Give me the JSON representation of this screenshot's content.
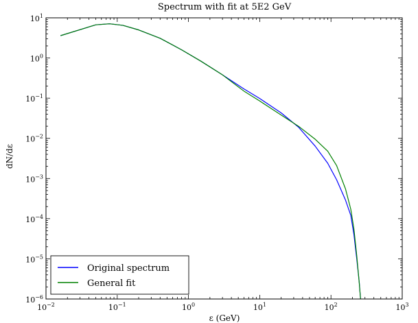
{
  "chart_data": {
    "type": "line",
    "title": "Spectrum with fit at 5E2 GeV",
    "xlabel": "ε (GeV)",
    "ylabel": "dN/dε",
    "xscale": "log",
    "yscale": "log",
    "xlim": [
      0.01,
      1000
    ],
    "ylim": [
      1e-06,
      10
    ],
    "x_ticks": [
      {
        "value": 0.01,
        "base": "10",
        "exp": "−2"
      },
      {
        "value": 0.1,
        "base": "10",
        "exp": "−1"
      },
      {
        "value": 1,
        "base": "10",
        "exp": "0"
      },
      {
        "value": 10,
        "base": "10",
        "exp": "1"
      },
      {
        "value": 100,
        "base": "10",
        "exp": "2"
      },
      {
        "value": 1000,
        "base": "10",
        "exp": "3"
      }
    ],
    "y_ticks": [
      {
        "value": 1e-06,
        "base": "10",
        "exp": "−6"
      },
      {
        "value": 1e-05,
        "base": "10",
        "exp": "−5"
      },
      {
        "value": 0.0001,
        "base": "10",
        "exp": "−4"
      },
      {
        "value": 0.001,
        "base": "10",
        "exp": "−3"
      },
      {
        "value": 0.01,
        "base": "10",
        "exp": "−2"
      },
      {
        "value": 0.1,
        "base": "10",
        "exp": "−1"
      },
      {
        "value": 1,
        "base": "10",
        "exp": "0"
      },
      {
        "value": 10,
        "base": "10",
        "exp": "1"
      }
    ],
    "grid": false,
    "legend": "bottom-left",
    "series": [
      {
        "name": "Original spectrum",
        "color": "#0000ff",
        "x": [
          0.016,
          0.05,
          0.078,
          0.12,
          0.2,
          0.4,
          0.8,
          1.5,
          3,
          6,
          10,
          20,
          35,
          60,
          90,
          120,
          160,
          190,
          210,
          230,
          250,
          260
        ],
        "y": [
          3.6,
          6.7,
          7.1,
          6.5,
          5.0,
          3.1,
          1.6,
          0.83,
          0.38,
          0.17,
          0.098,
          0.043,
          0.019,
          0.0064,
          0.0024,
          0.00093,
          0.00029,
          0.00012,
          4e-05,
          1e-05,
          2.5e-06,
          1e-06
        ]
      },
      {
        "name": "General fit",
        "color": "#008000",
        "x": [
          0.016,
          0.05,
          0.078,
          0.12,
          0.2,
          0.4,
          0.8,
          1.5,
          3,
          6,
          10,
          20,
          35,
          60,
          90,
          120,
          160,
          190,
          210,
          230,
          250,
          260
        ],
        "y": [
          3.6,
          6.7,
          7.1,
          6.5,
          5.0,
          3.1,
          1.6,
          0.83,
          0.38,
          0.15,
          0.085,
          0.038,
          0.02,
          0.0095,
          0.0048,
          0.0021,
          0.00055,
          0.00017,
          5.5e-05,
          1.2e-05,
          2.4e-06,
          1e-06
        ]
      }
    ]
  }
}
